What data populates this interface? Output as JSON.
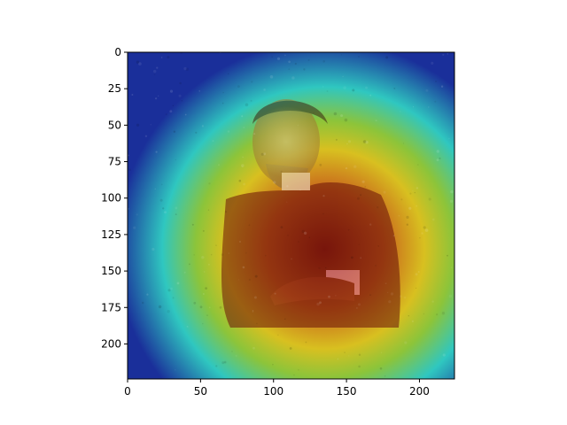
{
  "chart_data": {
    "type": "heatmap",
    "description_kind": "imshow overlay of attention heatmap on portrait",
    "title": "",
    "xlabel": "",
    "ylabel": "",
    "xlim": [
      0,
      224
    ],
    "ylim": [
      224,
      0
    ],
    "x_ticks": [
      0,
      50,
      100,
      150,
      200
    ],
    "y_ticks": [
      0,
      25,
      50,
      75,
      100,
      125,
      150,
      175,
      200
    ],
    "colormap": "jet",
    "colors": {
      "deep_blue": "#1a2f9a",
      "cyan": "#2fc7c0",
      "green": "#8cc43a",
      "yellow": "#d8c020",
      "orange": "#c8641c",
      "dark_red": "#8a1c10"
    },
    "hotspot_center_data": [
      135,
      135
    ],
    "face_center_data": [
      110,
      68
    ]
  }
}
